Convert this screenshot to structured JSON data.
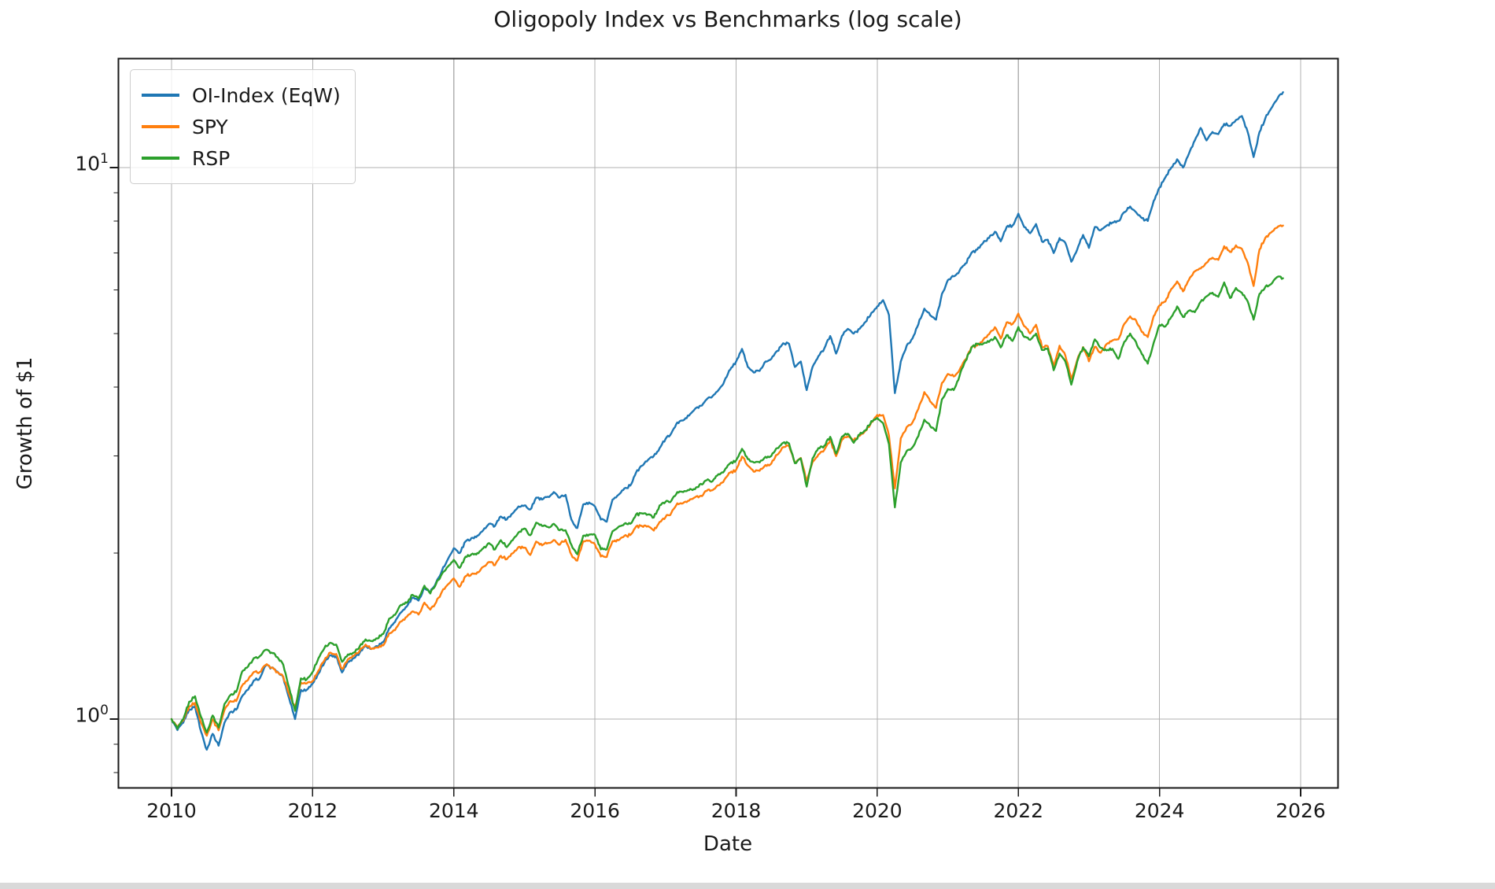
{
  "chart_data": {
    "type": "line",
    "title": "Oligopoly Index vs Benchmarks (log scale)",
    "xlabel": "Date",
    "ylabel": "Growth of $1",
    "yscale": "log",
    "grid": true,
    "legend_position": "upper left",
    "xlim": [
      2009.24,
      2026.52
    ],
    "ylim": [
      0.75,
      15.74
    ],
    "x_unit": "decimal_year",
    "x_start": 2010.0,
    "x_step": 0.0833333,
    "x_ticks": [
      {
        "year": 2010,
        "label": "2010"
      },
      {
        "year": 2012,
        "label": "2012"
      },
      {
        "year": 2014,
        "label": "2014"
      },
      {
        "year": 2016,
        "label": "2016"
      },
      {
        "year": 2018,
        "label": "2018"
      },
      {
        "year": 2020,
        "label": "2020"
      },
      {
        "year": 2022,
        "label": "2022"
      },
      {
        "year": 2024,
        "label": "2024"
      },
      {
        "year": 2026,
        "label": "2026"
      }
    ],
    "y_major_ticks": [
      {
        "value": 1,
        "base": "10",
        "exponent": "0"
      },
      {
        "value": 10,
        "base": "10",
        "exponent": "1"
      }
    ],
    "y_minor_ticks": [
      0.8,
      0.9,
      2,
      3,
      4,
      5,
      6,
      7,
      8,
      9
    ],
    "grid_color": "#b0b0b0",
    "frame_color": "#1a1a1a",
    "series": [
      {
        "name": "OI-Index (EqW)",
        "color": "#1f77b4",
        "values": [
          1.0,
          0.955,
          0.985,
          1.04,
          1.055,
          0.95,
          0.88,
          0.94,
          0.895,
          0.985,
          1.03,
          1.04,
          1.1,
          1.13,
          1.175,
          1.185,
          1.25,
          1.24,
          1.22,
          1.19,
          1.09,
          1.0,
          1.13,
          1.13,
          1.16,
          1.21,
          1.265,
          1.305,
          1.3,
          1.215,
          1.27,
          1.29,
          1.32,
          1.36,
          1.34,
          1.355,
          1.38,
          1.46,
          1.5,
          1.56,
          1.6,
          1.66,
          1.64,
          1.73,
          1.7,
          1.77,
          1.86,
          1.95,
          2.04,
          2.0,
          2.1,
          2.13,
          2.15,
          2.2,
          2.26,
          2.24,
          2.33,
          2.3,
          2.36,
          2.43,
          2.44,
          2.4,
          2.52,
          2.5,
          2.53,
          2.58,
          2.52,
          2.55,
          2.3,
          2.22,
          2.45,
          2.47,
          2.43,
          2.3,
          2.28,
          2.5,
          2.55,
          2.62,
          2.65,
          2.8,
          2.88,
          2.95,
          3.0,
          3.1,
          3.22,
          3.3,
          3.45,
          3.48,
          3.55,
          3.65,
          3.7,
          3.8,
          3.85,
          3.95,
          4.1,
          4.3,
          4.45,
          4.69,
          4.35,
          4.25,
          4.28,
          4.45,
          4.5,
          4.65,
          4.8,
          4.79,
          4.35,
          4.45,
          3.95,
          4.35,
          4.55,
          4.7,
          4.95,
          4.6,
          4.95,
          5.1,
          5.0,
          5.1,
          5.25,
          5.45,
          5.6,
          5.75,
          5.4,
          3.9,
          4.45,
          4.75,
          4.9,
          5.2,
          5.55,
          5.4,
          5.3,
          5.9,
          6.25,
          6.35,
          6.5,
          6.7,
          7.0,
          7.1,
          7.3,
          7.45,
          7.65,
          7.35,
          7.8,
          7.85,
          8.25,
          7.8,
          7.6,
          7.9,
          7.35,
          7.4,
          7.0,
          7.45,
          7.3,
          6.75,
          7.1,
          7.55,
          7.15,
          7.8,
          7.7,
          7.85,
          7.95,
          8.0,
          8.3,
          8.5,
          8.3,
          8.1,
          8.0,
          8.7,
          9.2,
          9.6,
          10.0,
          10.35,
          10.0,
          10.6,
          11.2,
          11.8,
          11.2,
          11.6,
          11.5,
          12.0,
          11.9,
          12.2,
          12.4,
          11.6,
          10.45,
          11.6,
          12.3,
          12.8,
          13.3,
          13.7
        ]
      },
      {
        "name": "SPY",
        "color": "#ff7f0e",
        "values": [
          1.0,
          0.964,
          0.994,
          1.054,
          1.07,
          0.985,
          0.933,
          0.999,
          0.954,
          1.039,
          1.078,
          1.078,
          1.15,
          1.177,
          1.217,
          1.217,
          1.253,
          1.239,
          1.218,
          1.193,
          1.11,
          1.049,
          1.164,
          1.161,
          1.173,
          1.225,
          1.278,
          1.32,
          1.312,
          1.233,
          1.284,
          1.302,
          1.331,
          1.365,
          1.34,
          1.348,
          1.36,
          1.43,
          1.449,
          1.503,
          1.532,
          1.568,
          1.547,
          1.626,
          1.579,
          1.628,
          1.703,
          1.755,
          1.799,
          1.737,
          1.816,
          1.831,
          1.845,
          1.888,
          1.927,
          1.901,
          1.977,
          1.949,
          1.997,
          2.051,
          2.046,
          1.984,
          2.098,
          2.065,
          2.085,
          2.112,
          2.071,
          2.114,
          1.987,
          1.938,
          2.101,
          2.107,
          2.074,
          1.971,
          1.968,
          2.102,
          2.11,
          2.148,
          2.156,
          2.235,
          2.238,
          2.238,
          2.197,
          2.278,
          2.323,
          2.367,
          2.461,
          2.464,
          2.489,
          2.524,
          2.54,
          2.592,
          2.6,
          2.654,
          2.716,
          2.799,
          2.83,
          2.992,
          2.882,
          2.809,
          2.82,
          2.888,
          2.906,
          3.014,
          3.112,
          3.13,
          2.916,
          2.975,
          2.707,
          2.924,
          3.018,
          3.077,
          3.202,
          2.998,
          3.209,
          3.255,
          3.203,
          3.263,
          3.334,
          3.455,
          3.559,
          3.558,
          3.265,
          2.62,
          3.229,
          3.383,
          3.45,
          3.653,
          3.916,
          3.767,
          3.667,
          4.068,
          4.224,
          4.181,
          4.297,
          4.485,
          4.724,
          4.757,
          4.868,
          4.984,
          5.135,
          4.896,
          5.239,
          5.203,
          5.436,
          5.155,
          5.002,
          5.188,
          4.735,
          4.744,
          4.353,
          4.754,
          4.56,
          4.14,
          4.475,
          4.725,
          4.453,
          4.732,
          4.617,
          4.786,
          4.861,
          4.882,
          5.205,
          5.372,
          5.287,
          5.035,
          4.929,
          5.379,
          5.623,
          5.718,
          6.023,
          6.217,
          5.963,
          6.259,
          6.483,
          6.562,
          6.721,
          6.864,
          6.802,
          7.201,
          7.03,
          7.226,
          7.122,
          6.723,
          6.1,
          7.102,
          7.463,
          7.628,
          7.782,
          7.85
        ]
      },
      {
        "name": "RSP",
        "color": "#2ca02c",
        "values": [
          1.0,
          0.96,
          1.0,
          1.075,
          1.1,
          1.01,
          0.945,
          1.015,
          0.965,
          1.065,
          1.105,
          1.12,
          1.219,
          1.245,
          1.29,
          1.3,
          1.335,
          1.32,
          1.295,
          1.255,
          1.14,
          1.035,
          1.185,
          1.18,
          1.218,
          1.29,
          1.345,
          1.375,
          1.365,
          1.27,
          1.31,
          1.32,
          1.355,
          1.395,
          1.385,
          1.4,
          1.427,
          1.52,
          1.545,
          1.61,
          1.625,
          1.68,
          1.655,
          1.745,
          1.69,
          1.76,
          1.835,
          1.89,
          1.944,
          1.88,
          1.97,
          1.99,
          2.0,
          2.04,
          2.085,
          2.03,
          2.11,
          2.05,
          2.11,
          2.18,
          2.216,
          2.155,
          2.27,
          2.24,
          2.23,
          2.26,
          2.2,
          2.2,
          2.07,
          1.99,
          2.15,
          2.16,
          2.158,
          2.03,
          2.03,
          2.19,
          2.23,
          2.26,
          2.26,
          2.35,
          2.36,
          2.35,
          2.32,
          2.44,
          2.477,
          2.49,
          2.58,
          2.58,
          2.6,
          2.61,
          2.67,
          2.71,
          2.7,
          2.78,
          2.82,
          2.91,
          2.945,
          3.09,
          2.96,
          2.92,
          2.92,
          2.99,
          3.0,
          3.1,
          3.17,
          3.16,
          2.91,
          2.97,
          2.64,
          2.97,
          3.1,
          3.13,
          3.25,
          3.03,
          3.25,
          3.29,
          3.17,
          3.28,
          3.34,
          3.47,
          3.516,
          3.44,
          3.15,
          2.42,
          2.92,
          3.06,
          3.11,
          3.26,
          3.49,
          3.4,
          3.33,
          3.8,
          3.966,
          3.95,
          4.19,
          4.46,
          4.71,
          4.79,
          4.79,
          4.83,
          4.93,
          4.72,
          4.97,
          4.85,
          5.14,
          4.93,
          4.87,
          5.0,
          4.67,
          4.7,
          4.29,
          4.6,
          4.45,
          4.04,
          4.45,
          4.72,
          4.549,
          4.88,
          4.71,
          4.66,
          4.69,
          4.5,
          4.83,
          5.0,
          4.83,
          4.59,
          4.41,
          4.81,
          5.181,
          5.15,
          5.36,
          5.6,
          5.36,
          5.5,
          5.47,
          5.71,
          5.84,
          5.93,
          5.83,
          6.19,
          5.8,
          6.05,
          5.93,
          5.72,
          5.3,
          5.9,
          6.08,
          6.15,
          6.33,
          6.3
        ]
      }
    ]
  }
}
